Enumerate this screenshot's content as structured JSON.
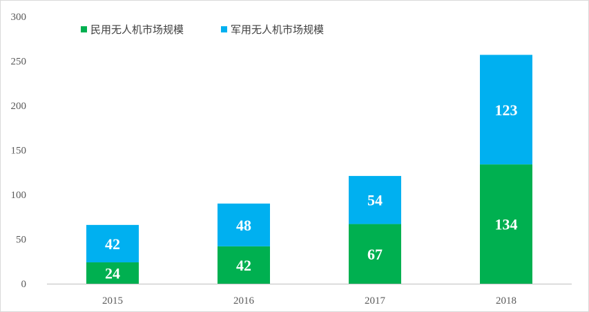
{
  "chart_data": {
    "type": "bar",
    "stacked": true,
    "categories": [
      "2015",
      "2016",
      "2017",
      "2018"
    ],
    "series": [
      {
        "name": "民用无人机市场规模",
        "values": [
          24,
          42,
          67,
          134
        ],
        "color": "#00b050"
      },
      {
        "name": "军用无人机市场规模",
        "values": [
          42,
          48,
          54,
          123
        ],
        "color": "#00b0f0"
      }
    ],
    "ylim": [
      0,
      300
    ],
    "yticks": [
      0,
      50,
      100,
      150,
      200,
      250,
      300
    ],
    "title": "",
    "xlabel": "",
    "ylabel": "",
    "legend": "top-left",
    "grid": false
  }
}
